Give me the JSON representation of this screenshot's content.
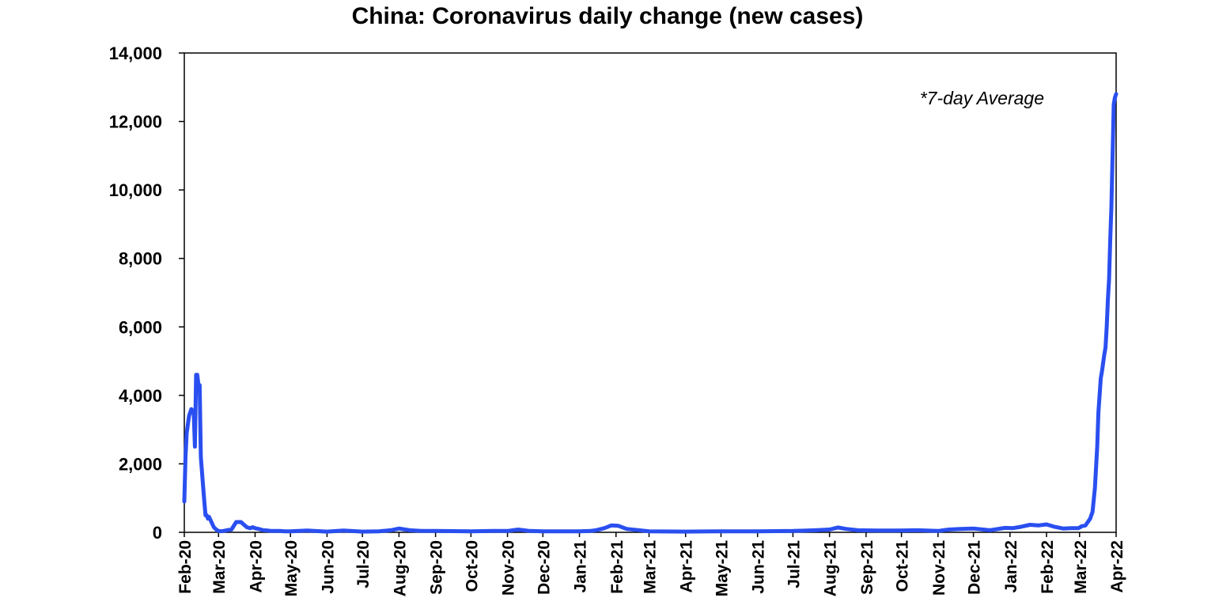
{
  "chart_data": {
    "type": "line",
    "title": "China: Coronavirus daily change (new cases)",
    "annotation": "*7-day Average",
    "xlabel": "",
    "ylabel": "",
    "ylim": [
      0,
      14000
    ],
    "yticks": [
      0,
      2000,
      4000,
      6000,
      8000,
      10000,
      12000,
      14000
    ],
    "ytick_labels": [
      "0",
      "2,000",
      "4,000",
      "6,000",
      "8,000",
      "10,000",
      "12,000",
      "14,000"
    ],
    "xlim": [
      "2020-02-01",
      "2022-04-01"
    ],
    "xtick_labels": [
      "Feb-20",
      "Mar-20",
      "Apr-20",
      "May-20",
      "Jun-20",
      "Jul-20",
      "Aug-20",
      "Sep-20",
      "Oct-20",
      "Nov-20",
      "Dec-20",
      "Jan-21",
      "Feb-21",
      "Mar-21",
      "Apr-21",
      "May-21",
      "Jun-21",
      "Jul-21",
      "Aug-21",
      "Sep-21",
      "Oct-21",
      "Nov-21",
      "Dec-21",
      "Jan-22",
      "Feb-22",
      "Mar-22",
      "Apr-22"
    ],
    "xtick_dates": [
      "2020-02-01",
      "2020-03-01",
      "2020-04-01",
      "2020-05-01",
      "2020-06-01",
      "2020-07-01",
      "2020-08-01",
      "2020-09-01",
      "2020-10-01",
      "2020-11-01",
      "2020-12-01",
      "2021-01-01",
      "2021-02-01",
      "2021-03-01",
      "2021-04-01",
      "2021-05-01",
      "2021-06-01",
      "2021-07-01",
      "2021-08-01",
      "2021-09-01",
      "2021-10-01",
      "2021-11-01",
      "2021-12-01",
      "2022-01-01",
      "2022-02-01",
      "2022-03-01",
      "2022-04-01"
    ],
    "grid": false,
    "legend": "none",
    "series": [
      {
        "color": "#2a4ff0",
        "x": [
          "2020-02-01",
          "2020-02-02",
          "2020-02-03",
          "2020-02-05",
          "2020-02-07",
          "2020-02-09",
          "2020-02-10",
          "2020-02-11",
          "2020-02-12",
          "2020-02-13",
          "2020-02-14",
          "2020-02-15",
          "2020-02-17",
          "2020-02-18",
          "2020-02-19",
          "2020-02-20",
          "2020-02-21",
          "2020-02-22",
          "2020-02-24",
          "2020-02-26",
          "2020-02-28",
          "2020-03-01",
          "2020-03-03",
          "2020-03-05",
          "2020-03-08",
          "2020-03-12",
          "2020-03-16",
          "2020-03-20",
          "2020-03-25",
          "2020-03-28",
          "2020-03-30",
          "2020-04-01",
          "2020-04-04",
          "2020-04-06",
          "2020-04-08",
          "2020-04-12",
          "2020-04-15",
          "2020-04-18",
          "2020-04-22",
          "2020-04-26",
          "2020-05-01",
          "2020-05-15",
          "2020-06-01",
          "2020-06-15",
          "2020-07-01",
          "2020-07-15",
          "2020-07-25",
          "2020-08-01",
          "2020-08-10",
          "2020-08-20",
          "2020-09-01",
          "2020-10-01",
          "2020-10-20",
          "2020-11-01",
          "2020-11-10",
          "2020-11-20",
          "2020-12-01",
          "2020-12-15",
          "2021-01-01",
          "2021-01-10",
          "2021-01-15",
          "2021-01-22",
          "2021-01-28",
          "2021-02-03",
          "2021-02-10",
          "2021-03-01",
          "2021-04-01",
          "2021-05-01",
          "2021-06-01",
          "2021-07-01",
          "2021-07-20",
          "2021-08-01",
          "2021-08-08",
          "2021-08-15",
          "2021-08-25",
          "2021-09-10",
          "2021-09-25",
          "2021-10-15",
          "2021-11-01",
          "2021-11-10",
          "2021-11-20",
          "2021-12-01",
          "2021-12-15",
          "2021-12-28",
          "2022-01-03",
          "2022-01-10",
          "2022-01-18",
          "2022-01-25",
          "2022-02-01",
          "2022-02-08",
          "2022-02-15",
          "2022-02-22",
          "2022-02-28",
          "2022-03-03",
          "2022-03-06",
          "2022-03-08",
          "2022-03-10",
          "2022-03-12",
          "2022-03-14",
          "2022-03-16",
          "2022-03-17",
          "2022-03-19",
          "2022-03-20",
          "2022-03-22",
          "2022-03-23",
          "2022-03-24",
          "2022-03-25",
          "2022-03-26",
          "2022-03-27",
          "2022-03-28",
          "2022-03-29",
          "2022-03-30",
          "2022-03-31",
          "2022-04-01"
        ],
        "values": [
          900,
          2200,
          2900,
          3400,
          3600,
          3500,
          2500,
          4600,
          4600,
          4300,
          4300,
          2200,
          1300,
          900,
          500,
          500,
          400,
          450,
          300,
          150,
          80,
          40,
          30,
          40,
          60,
          80,
          300,
          300,
          150,
          120,
          150,
          120,
          100,
          80,
          60,
          50,
          40,
          40,
          40,
          30,
          30,
          50,
          20,
          50,
          20,
          30,
          60,
          110,
          60,
          40,
          40,
          30,
          40,
          40,
          80,
          40,
          30,
          30,
          30,
          40,
          60,
          120,
          200,
          190,
          100,
          30,
          20,
          30,
          30,
          40,
          60,
          80,
          140,
          100,
          60,
          50,
          50,
          60,
          40,
          80,
          100,
          110,
          60,
          130,
          120,
          160,
          220,
          200,
          230,
          160,
          110,
          120,
          120,
          180,
          200,
          300,
          400,
          600,
          1300,
          2500,
          3500,
          4500,
          4700,
          5200,
          5400,
          6000,
          6800,
          7400,
          8500,
          9500,
          11000,
          12500,
          12700,
          12800
        ]
      }
    ]
  }
}
